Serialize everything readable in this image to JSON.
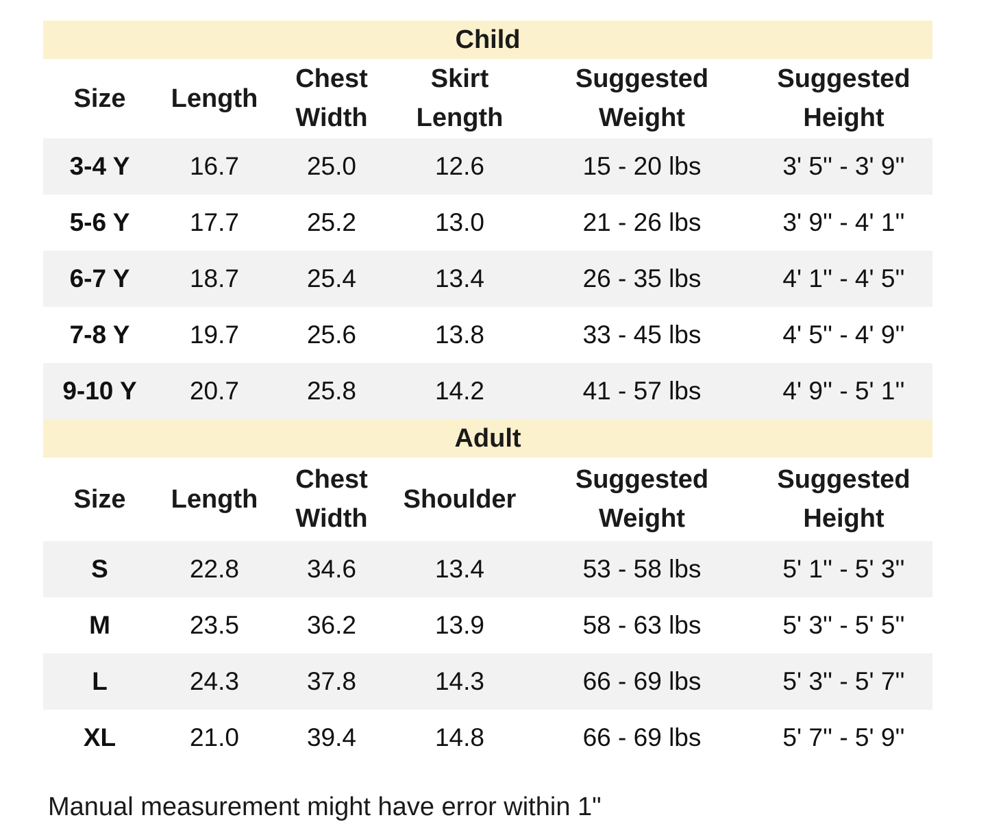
{
  "child": {
    "title": "Child",
    "headers": [
      [
        "Size"
      ],
      [
        "Length"
      ],
      [
        "Chest",
        "Width"
      ],
      [
        "Skirt",
        "Length"
      ],
      [
        "Suggested",
        "Weight"
      ],
      [
        "Suggested",
        "Height"
      ]
    ],
    "rows": [
      [
        "3-4 Y",
        "16.7",
        "25.0",
        "12.6",
        "15 - 20 lbs",
        "3' 5'' - 3' 9''"
      ],
      [
        "5-6 Y",
        "17.7",
        "25.2",
        "13.0",
        "21 - 26 lbs",
        "3' 9'' - 4' 1''"
      ],
      [
        "6-7 Y",
        "18.7",
        "25.4",
        "13.4",
        "26 - 35 lbs",
        "4' 1'' - 4' 5''"
      ],
      [
        "7-8 Y",
        "19.7",
        "25.6",
        "13.8",
        "33 - 45 lbs",
        "4' 5'' - 4' 9''"
      ],
      [
        "9-10 Y",
        "20.7",
        "25.8",
        "14.2",
        "41 - 57 lbs",
        "4' 9'' - 5' 1''"
      ]
    ]
  },
  "adult": {
    "title": "Adult",
    "headers": [
      [
        "Size"
      ],
      [
        "Length"
      ],
      [
        "Chest",
        "Width"
      ],
      [
        "Shoulder"
      ],
      [
        "Suggested",
        "Weight"
      ],
      [
        "Suggested",
        "Height"
      ]
    ],
    "rows": [
      [
        "S",
        "22.8",
        "34.6",
        "13.4",
        "53 - 58 lbs",
        "5' 1'' - 5' 3''"
      ],
      [
        "M",
        "23.5",
        "36.2",
        "13.9",
        "58 - 63 lbs",
        "5' 3'' - 5' 5''"
      ],
      [
        "L",
        "24.3",
        "37.8",
        "14.3",
        "66 - 69 lbs",
        "5' 3'' - 5' 7''"
      ],
      [
        "XL",
        "21.0",
        "39.4",
        "14.8",
        "66 - 69 lbs",
        "5' 7'' - 5' 9''"
      ]
    ]
  },
  "footnote": "Manual measurement might have error within 1\"",
  "colors": {
    "section_bg": "#fbf1cc",
    "stripe_bg": "#f2f2f2"
  }
}
